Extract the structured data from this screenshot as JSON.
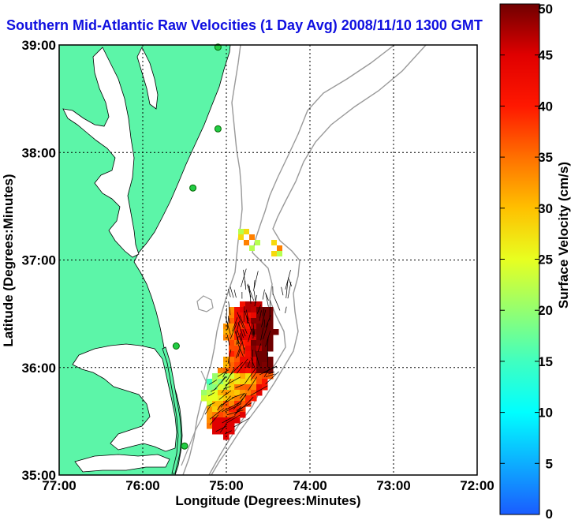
{
  "title": "Southern Mid-Atlantic Raw Velocities (1 Day Avg) 2008/11/10 1300 GMT",
  "colors": {
    "land": "#5cf5a8",
    "coastline": "#000000",
    "bathymetry": "#999999",
    "station": "#22cc44",
    "title_text": "#1010e0"
  },
  "chart_data": {
    "type": "heatmap",
    "title": "Southern Mid-Atlantic Raw Velocities (1 Day Avg) 2008/11/10 1300 GMT",
    "xlabel": "Longitude (Degrees:Minutes)",
    "ylabel": "Latitude (Degrees:Minutes)",
    "xlim": [
      -77,
      -72
    ],
    "ylim": [
      35,
      39
    ],
    "x_ticks": [
      {
        "value": -77,
        "label": "77:00"
      },
      {
        "value": -76,
        "label": "76:00"
      },
      {
        "value": -75,
        "label": "75:00"
      },
      {
        "value": -74,
        "label": "74:00"
      },
      {
        "value": -73,
        "label": "73:00"
      },
      {
        "value": -72,
        "label": "72:00"
      }
    ],
    "y_ticks": [
      {
        "value": 35,
        "label": "35:00"
      },
      {
        "value": 36,
        "label": "36:00"
      },
      {
        "value": 37,
        "label": "37:00"
      },
      {
        "value": 38,
        "label": "38:00"
      },
      {
        "value": 39,
        "label": "39:00"
      }
    ],
    "grid": true,
    "colorbar": {
      "label": "Surface Velocity (cm/s)",
      "min": 0,
      "max": 50,
      "ticks": [
        0,
        5,
        10,
        15,
        20,
        25,
        30,
        35,
        40,
        45,
        50
      ]
    },
    "stations": [
      {
        "lon": -75.1,
        "lat": 38.98
      },
      {
        "lon": -75.1,
        "lat": 38.22
      },
      {
        "lon": -75.4,
        "lat": 37.67
      },
      {
        "lon": -75.6,
        "lat": 36.2
      },
      {
        "lon": -75.5,
        "lat": 35.27
      }
    ]
  }
}
